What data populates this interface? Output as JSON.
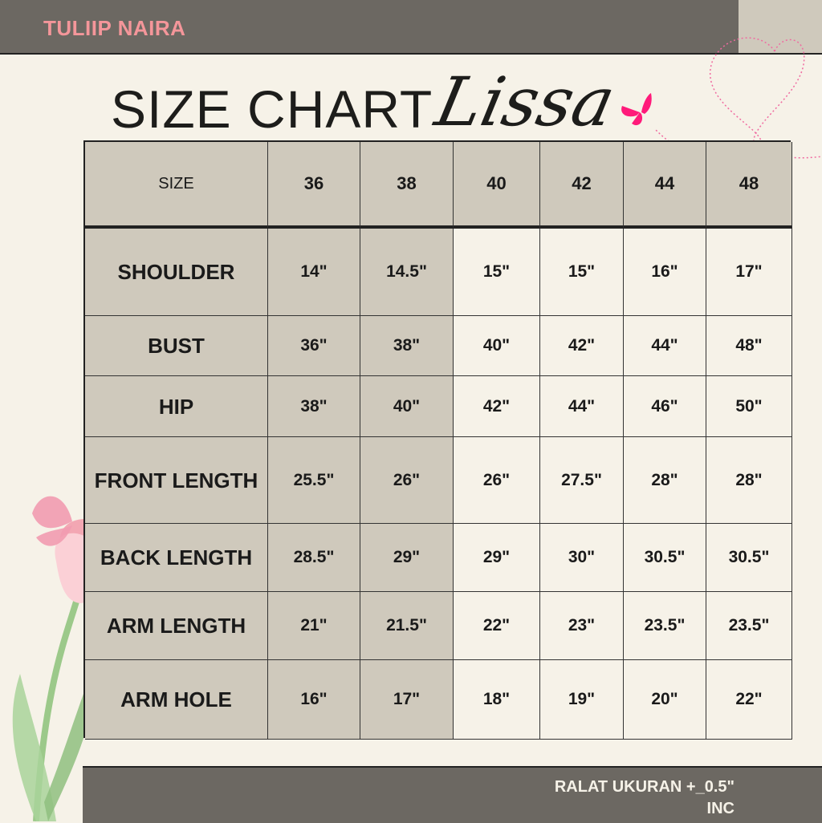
{
  "brand": "TULIIP NAIRA",
  "title": "SIZE CHART",
  "title_script": "Lissa",
  "colors": {
    "bar": "#6c6862",
    "cell_gray": "#cfc9bc",
    "cream": "#f6f2e8",
    "brand_pink": "#f4969a",
    "butterfly": "#ff1a7a"
  },
  "table": {
    "header_label": "SIZE",
    "sizes": [
      "36",
      "38",
      "40",
      "42",
      "44",
      "48"
    ],
    "rows": [
      {
        "label": "SHOULDER",
        "values": [
          "14\"",
          "14.5\"",
          "15\"",
          "15\"",
          "16\"",
          "17\""
        ]
      },
      {
        "label": "BUST",
        "values": [
          "36\"",
          "38\"",
          "40\"",
          "42\"",
          "44\"",
          "48\""
        ]
      },
      {
        "label": "HIP",
        "values": [
          "38\"",
          "40\"",
          "42\"",
          "44\"",
          "46\"",
          "50\""
        ]
      },
      {
        "label": "FRONT LENGTH",
        "values": [
          "25.5\"",
          "26\"",
          "26\"",
          "27.5\"",
          "28\"",
          "28\""
        ]
      },
      {
        "label": "BACK LENGTH",
        "values": [
          "28.5\"",
          "29\"",
          "29\"",
          "30\"",
          "30.5\"",
          "30.5\""
        ]
      },
      {
        "label": "ARM LENGTH",
        "values": [
          "21\"",
          "21.5\"",
          "22\"",
          "23\"",
          "23.5\"",
          "23.5\""
        ]
      },
      {
        "label": "ARM HOLE",
        "values": [
          "16\"",
          "17\"",
          "18\"",
          "19\"",
          "20\"",
          "22\""
        ]
      }
    ]
  },
  "footer_note_line1": "RALAT UKURAN +_0.5\"",
  "footer_note_line2": "INC"
}
